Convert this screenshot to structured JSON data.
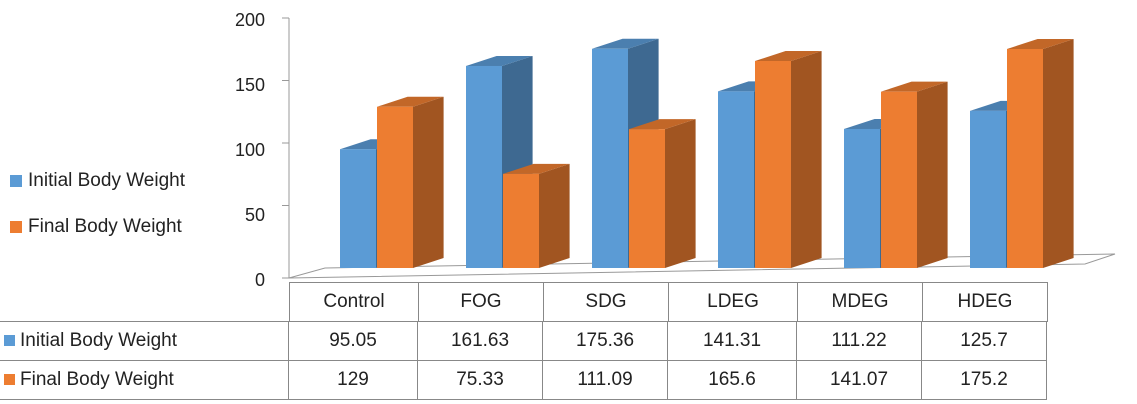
{
  "chart_data": {
    "type": "bar",
    "style": "3d-clustered-column",
    "categories": [
      "Control",
      "FOG",
      "SDG",
      "LDEG",
      "MDEG",
      "HDEG"
    ],
    "series": [
      {
        "name": "Initial Body Weight",
        "values": [
          95.05,
          161.63,
          175.36,
          141.31,
          111.22,
          125.7
        ],
        "color": "#5B9BD5"
      },
      {
        "name": "Final Body Weight",
        "values": [
          129,
          75.33,
          111.09,
          165.6,
          141.07,
          175.2
        ],
        "color": "#ED7D31"
      }
    ],
    "value_labels": {
      "initial": [
        "95.05",
        "161.63",
        "175.36",
        "141.31",
        "111.22",
        "125.7"
      ],
      "final": [
        "129",
        "75.33",
        "111.09",
        "165.6",
        "141.07",
        "175.2"
      ]
    },
    "yticks": [
      "0",
      "50",
      "100",
      "150",
      "200"
    ],
    "ylim": [
      0,
      200
    ],
    "grid": false,
    "legend": "left",
    "data_table": true
  }
}
